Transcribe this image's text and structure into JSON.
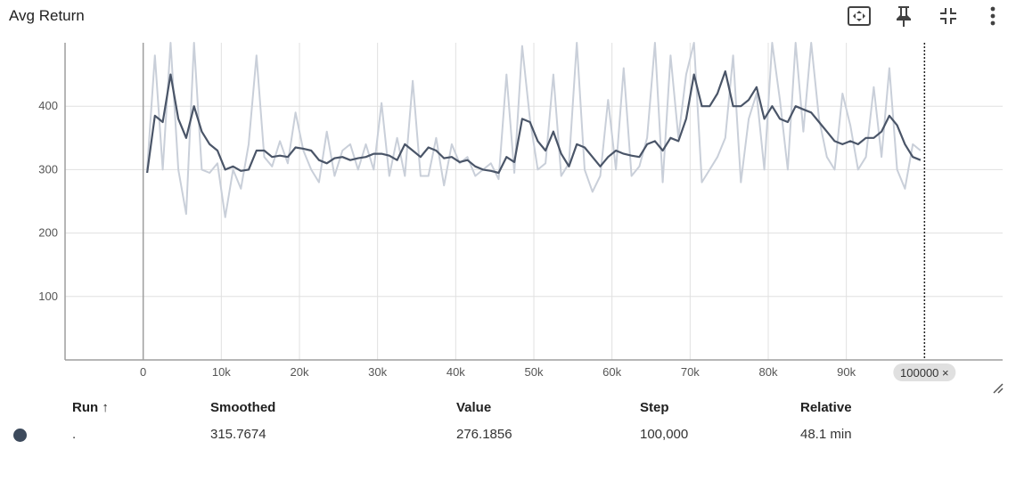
{
  "header": {
    "title": "Avg Return",
    "icons": [
      "fit-domain-icon",
      "pin-icon",
      "collapse-icon",
      "more-vert-icon"
    ]
  },
  "colors": {
    "smoothed_line": "#4a5568",
    "raw_line": "#c9cfd9",
    "grid": "#e0e0e0",
    "axis": "#9e9e9e",
    "run_dot": "#3d4a5c"
  },
  "chart_data": {
    "type": "line",
    "title": "Avg Return",
    "xlabel": "",
    "ylabel": "",
    "xlim": [
      -10000,
      110000
    ],
    "ylim": [
      0,
      500
    ],
    "x_ticks": [
      "0",
      "10k",
      "20k",
      "30k",
      "40k",
      "50k",
      "60k",
      "70k",
      "80k",
      "90k"
    ],
    "y_ticks": [
      "100",
      "200",
      "300",
      "400"
    ],
    "grid": true,
    "cursor_step": 100000,
    "cursor_label": "100000 ×",
    "series": [
      {
        "role": "raw",
        "x": [
          500,
          1500,
          2500,
          3500,
          4500,
          5500,
          6500,
          7500,
          8500,
          9500,
          10500,
          11500,
          12500,
          13500,
          14500,
          15500,
          16500,
          17500,
          18500,
          19500,
          20500,
          21500,
          22500,
          23500,
          24500,
          25500,
          26500,
          27500,
          28500,
          29500,
          30500,
          31500,
          32500,
          33500,
          34500,
          35500,
          36500,
          37500,
          38500,
          39500,
          40500,
          41500,
          42500,
          43500,
          44500,
          45500,
          46500,
          47500,
          48500,
          49500,
          50500,
          51500,
          52500,
          53500,
          54500,
          55500,
          56500,
          57500,
          58500,
          59500,
          60500,
          61500,
          62500,
          63500,
          64500,
          65500,
          66500,
          67500,
          68500,
          69500,
          70500,
          71500,
          72500,
          73500,
          74500,
          75500,
          76500,
          77500,
          78500,
          79500,
          80500,
          81500,
          82500,
          83500,
          84500,
          85500,
          86500,
          87500,
          88500,
          89500,
          90500,
          91500,
          92500,
          93500,
          94500,
          95500,
          96500,
          97500,
          98500,
          99500
        ],
        "values": [
          300,
          480,
          300,
          500,
          300,
          230,
          500,
          300,
          295,
          310,
          225,
          300,
          270,
          340,
          480,
          320,
          305,
          345,
          310,
          390,
          330,
          300,
          280,
          360,
          290,
          330,
          340,
          300,
          340,
          300,
          405,
          290,
          350,
          290,
          440,
          290,
          290,
          350,
          275,
          340,
          310,
          320,
          290,
          300,
          310,
          285,
          450,
          295,
          495,
          380,
          300,
          310,
          450,
          290,
          310,
          500,
          300,
          265,
          290,
          410,
          300,
          460,
          290,
          305,
          350,
          520,
          280,
          480,
          350,
          450,
          500,
          280,
          300,
          320,
          350,
          480,
          280,
          380,
          420,
          300,
          510,
          410,
          300,
          500,
          360,
          520,
          380,
          320,
          300,
          420,
          370,
          300,
          320,
          430,
          320,
          460,
          300,
          270,
          340,
          330
        ]
      },
      {
        "role": "smoothed",
        "x": [
          500,
          1500,
          2500,
          3500,
          4500,
          5500,
          6500,
          7500,
          8500,
          9500,
          10500,
          11500,
          12500,
          13500,
          14500,
          15500,
          16500,
          17500,
          18500,
          19500,
          20500,
          21500,
          22500,
          23500,
          24500,
          25500,
          26500,
          27500,
          28500,
          29500,
          30500,
          31500,
          32500,
          33500,
          34500,
          35500,
          36500,
          37500,
          38500,
          39500,
          40500,
          41500,
          42500,
          43500,
          44500,
          45500,
          46500,
          47500,
          48500,
          49500,
          50500,
          51500,
          52500,
          53500,
          54500,
          55500,
          56500,
          57500,
          58500,
          59500,
          60500,
          61500,
          62500,
          63500,
          64500,
          65500,
          66500,
          67500,
          68500,
          69500,
          70500,
          71500,
          72500,
          73500,
          74500,
          75500,
          76500,
          77500,
          78500,
          79500,
          80500,
          81500,
          82500,
          83500,
          84500,
          85500,
          86500,
          87500,
          88500,
          89500,
          90500,
          91500,
          92500,
          93500,
          94500,
          95500,
          96500,
          97500,
          98500,
          99500
        ],
        "values": [
          295,
          385,
          375,
          450,
          380,
          350,
          400,
          360,
          340,
          330,
          300,
          305,
          298,
          300,
          330,
          330,
          320,
          322,
          320,
          335,
          333,
          330,
          315,
          310,
          318,
          320,
          315,
          318,
          320,
          325,
          325,
          322,
          315,
          340,
          330,
          320,
          335,
          330,
          318,
          320,
          312,
          315,
          305,
          300,
          298,
          295,
          320,
          312,
          380,
          375,
          345,
          330,
          360,
          325,
          305,
          340,
          335,
          320,
          305,
          320,
          330,
          325,
          322,
          320,
          340,
          345,
          330,
          350,
          345,
          380,
          450,
          400,
          400,
          420,
          455,
          400,
          400,
          410,
          430,
          380,
          400,
          380,
          375,
          400,
          395,
          390,
          375,
          360,
          345,
          340,
          345,
          340,
          350,
          350,
          360,
          385,
          370,
          340,
          320,
          315
        ]
      }
    ]
  },
  "table": {
    "headers": {
      "run": "Run ↑",
      "smoothed": "Smoothed",
      "value": "Value",
      "step": "Step",
      "relative": "Relative"
    },
    "rows": [
      {
        "run": ".",
        "smoothed": "315.7674",
        "value": "276.1856",
        "step": "100,000",
        "relative": "48.1 min"
      }
    ]
  }
}
